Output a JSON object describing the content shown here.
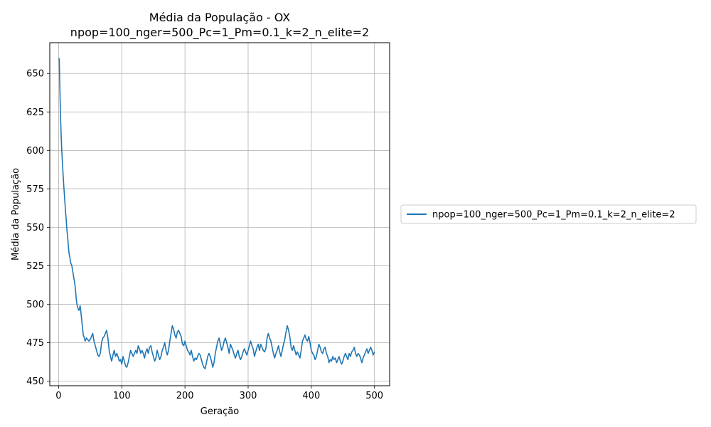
{
  "chart_data": {
    "type": "line",
    "title": "Média da População - OX",
    "subtitle": "npop=100_nger=500_Pc=1_Pm=0.1_k=2_n_elite=2",
    "xlabel": "Geração",
    "ylabel": "Média da População",
    "xlim": [
      -14,
      524
    ],
    "ylim": [
      447,
      670
    ],
    "xticks": [
      0,
      100,
      200,
      300,
      400,
      500
    ],
    "yticks": [
      450,
      475,
      500,
      525,
      550,
      575,
      600,
      625,
      650
    ],
    "grid": true,
    "legend_placement": "center-right outside",
    "series": [
      {
        "name": "npop=100_nger=500_Pc=1_Pm=0.1_k=2_n_elite=2",
        "color": "#1f77b4",
        "points": [
          [
            1,
            660
          ],
          [
            2,
            640
          ],
          [
            3,
            622
          ],
          [
            4,
            610
          ],
          [
            5,
            600
          ],
          [
            6,
            592
          ],
          [
            7,
            585
          ],
          [
            8,
            578
          ],
          [
            9,
            572
          ],
          [
            10,
            566
          ],
          [
            11,
            560
          ],
          [
            12,
            555
          ],
          [
            13,
            549
          ],
          [
            14,
            545
          ],
          [
            15,
            540
          ],
          [
            16,
            535
          ],
          [
            17,
            532
          ],
          [
            18,
            530
          ],
          [
            19,
            527
          ],
          [
            20,
            526
          ],
          [
            21,
            525
          ],
          [
            22,
            522
          ],
          [
            23,
            520
          ],
          [
            24,
            517
          ],
          [
            25,
            515
          ],
          [
            26,
            512
          ],
          [
            27,
            508
          ],
          [
            28,
            503
          ],
          [
            29,
            500
          ],
          [
            30,
            498
          ],
          [
            31,
            497
          ],
          [
            32,
            496
          ],
          [
            33,
            497
          ],
          [
            34,
            499
          ],
          [
            35,
            496
          ],
          [
            36,
            492
          ],
          [
            37,
            488
          ],
          [
            38,
            484
          ],
          [
            39,
            480
          ],
          [
            40,
            479
          ],
          [
            42,
            476
          ],
          [
            44,
            478
          ],
          [
            46,
            477
          ],
          [
            48,
            476
          ],
          [
            50,
            477
          ],
          [
            52,
            479
          ],
          [
            54,
            481
          ],
          [
            56,
            476
          ],
          [
            58,
            473
          ],
          [
            60,
            470
          ],
          [
            62,
            467
          ],
          [
            64,
            466
          ],
          [
            66,
            468
          ],
          [
            68,
            475
          ],
          [
            70,
            478
          ],
          [
            72,
            479
          ],
          [
            74,
            481
          ],
          [
            76,
            483
          ],
          [
            78,
            478
          ],
          [
            80,
            470
          ],
          [
            82,
            466
          ],
          [
            84,
            463
          ],
          [
            86,
            467
          ],
          [
            88,
            470
          ],
          [
            90,
            466
          ],
          [
            92,
            468
          ],
          [
            94,
            466
          ],
          [
            96,
            463
          ],
          [
            98,
            464
          ],
          [
            100,
            461
          ],
          [
            102,
            466
          ],
          [
            104,
            463
          ],
          [
            106,
            460
          ],
          [
            108,
            459
          ],
          [
            110,
            462
          ],
          [
            112,
            466
          ],
          [
            114,
            470
          ],
          [
            116,
            468
          ],
          [
            118,
            466
          ],
          [
            120,
            468
          ],
          [
            122,
            470
          ],
          [
            124,
            468
          ],
          [
            126,
            473
          ],
          [
            128,
            471
          ],
          [
            130,
            468
          ],
          [
            132,
            470
          ],
          [
            134,
            468
          ],
          [
            136,
            465
          ],
          [
            138,
            469
          ],
          [
            140,
            471
          ],
          [
            142,
            468
          ],
          [
            144,
            472
          ],
          [
            146,
            473
          ],
          [
            148,
            469
          ],
          [
            150,
            466
          ],
          [
            152,
            463
          ],
          [
            154,
            465
          ],
          [
            156,
            470
          ],
          [
            158,
            467
          ],
          [
            160,
            464
          ],
          [
            162,
            466
          ],
          [
            164,
            470
          ],
          [
            166,
            472
          ],
          [
            168,
            475
          ],
          [
            170,
            470
          ],
          [
            172,
            467
          ],
          [
            174,
            470
          ],
          [
            176,
            476
          ],
          [
            178,
            481
          ],
          [
            180,
            486
          ],
          [
            182,
            484
          ],
          [
            184,
            480
          ],
          [
            186,
            478
          ],
          [
            188,
            482
          ],
          [
            190,
            483
          ],
          [
            192,
            481
          ],
          [
            194,
            479
          ],
          [
            196,
            474
          ],
          [
            198,
            473
          ],
          [
            200,
            476
          ],
          [
            202,
            473
          ],
          [
            204,
            470
          ],
          [
            206,
            469
          ],
          [
            208,
            467
          ],
          [
            210,
            470
          ],
          [
            212,
            466
          ],
          [
            214,
            463
          ],
          [
            216,
            465
          ],
          [
            218,
            464
          ],
          [
            220,
            466
          ],
          [
            222,
            468
          ],
          [
            224,
            467
          ],
          [
            226,
            464
          ],
          [
            228,
            461
          ],
          [
            230,
            459
          ],
          [
            232,
            458
          ],
          [
            234,
            462
          ],
          [
            236,
            466
          ],
          [
            238,
            468
          ],
          [
            240,
            466
          ],
          [
            242,
            463
          ],
          [
            244,
            459
          ],
          [
            246,
            462
          ],
          [
            248,
            468
          ],
          [
            250,
            472
          ],
          [
            252,
            476
          ],
          [
            254,
            478
          ],
          [
            256,
            474
          ],
          [
            258,
            470
          ],
          [
            260,
            472
          ],
          [
            262,
            476
          ],
          [
            264,
            478
          ],
          [
            266,
            475
          ],
          [
            268,
            472
          ],
          [
            270,
            468
          ],
          [
            272,
            474
          ],
          [
            274,
            472
          ],
          [
            276,
            470
          ],
          [
            278,
            467
          ],
          [
            280,
            465
          ],
          [
            282,
            468
          ],
          [
            284,
            470
          ],
          [
            286,
            466
          ],
          [
            288,
            464
          ],
          [
            290,
            466
          ],
          [
            292,
            469
          ],
          [
            294,
            471
          ],
          [
            296,
            469
          ],
          [
            298,
            467
          ],
          [
            300,
            470
          ],
          [
            302,
            473
          ],
          [
            304,
            476
          ],
          [
            306,
            473
          ],
          [
            308,
            471
          ],
          [
            310,
            466
          ],
          [
            312,
            469
          ],
          [
            314,
            472
          ],
          [
            316,
            474
          ],
          [
            318,
            470
          ],
          [
            320,
            474
          ],
          [
            322,
            472
          ],
          [
            324,
            470
          ],
          [
            326,
            469
          ],
          [
            328,
            471
          ],
          [
            330,
            478
          ],
          [
            332,
            481
          ],
          [
            334,
            478
          ],
          [
            336,
            476
          ],
          [
            338,
            472
          ],
          [
            340,
            468
          ],
          [
            342,
            465
          ],
          [
            344,
            468
          ],
          [
            346,
            470
          ],
          [
            348,
            473
          ],
          [
            350,
            469
          ],
          [
            352,
            466
          ],
          [
            354,
            470
          ],
          [
            356,
            474
          ],
          [
            358,
            477
          ],
          [
            360,
            482
          ],
          [
            362,
            486
          ],
          [
            364,
            483
          ],
          [
            366,
            479
          ],
          [
            368,
            472
          ],
          [
            370,
            470
          ],
          [
            372,
            473
          ],
          [
            374,
            470
          ],
          [
            376,
            467
          ],
          [
            378,
            469
          ],
          [
            380,
            467
          ],
          [
            382,
            465
          ],
          [
            384,
            470
          ],
          [
            386,
            476
          ],
          [
            388,
            478
          ],
          [
            390,
            480
          ],
          [
            392,
            477
          ],
          [
            394,
            476
          ],
          [
            396,
            479
          ],
          [
            398,
            475
          ],
          [
            400,
            470
          ],
          [
            402,
            468
          ],
          [
            404,
            467
          ],
          [
            406,
            464
          ],
          [
            408,
            466
          ],
          [
            410,
            470
          ],
          [
            412,
            474
          ],
          [
            414,
            472
          ],
          [
            416,
            469
          ],
          [
            418,
            468
          ],
          [
            420,
            471
          ],
          [
            422,
            472
          ],
          [
            424,
            468
          ],
          [
            426,
            466
          ],
          [
            428,
            462
          ],
          [
            430,
            464
          ],
          [
            432,
            463
          ],
          [
            434,
            466
          ],
          [
            436,
            464
          ],
          [
            438,
            465
          ],
          [
            440,
            462
          ],
          [
            442,
            464
          ],
          [
            444,
            466
          ],
          [
            446,
            463
          ],
          [
            448,
            461
          ],
          [
            450,
            463
          ],
          [
            452,
            466
          ],
          [
            454,
            468
          ],
          [
            456,
            466
          ],
          [
            458,
            464
          ],
          [
            460,
            468
          ],
          [
            462,
            466
          ],
          [
            464,
            469
          ],
          [
            466,
            470
          ],
          [
            468,
            472
          ],
          [
            470,
            468
          ],
          [
            472,
            466
          ],
          [
            474,
            468
          ],
          [
            476,
            467
          ],
          [
            478,
            465
          ],
          [
            480,
            462
          ],
          [
            482,
            465
          ],
          [
            484,
            467
          ],
          [
            486,
            469
          ],
          [
            488,
            471
          ],
          [
            490,
            468
          ],
          [
            492,
            470
          ],
          [
            494,
            472
          ],
          [
            496,
            470
          ],
          [
            498,
            467
          ],
          [
            500,
            469
          ]
        ]
      }
    ]
  }
}
